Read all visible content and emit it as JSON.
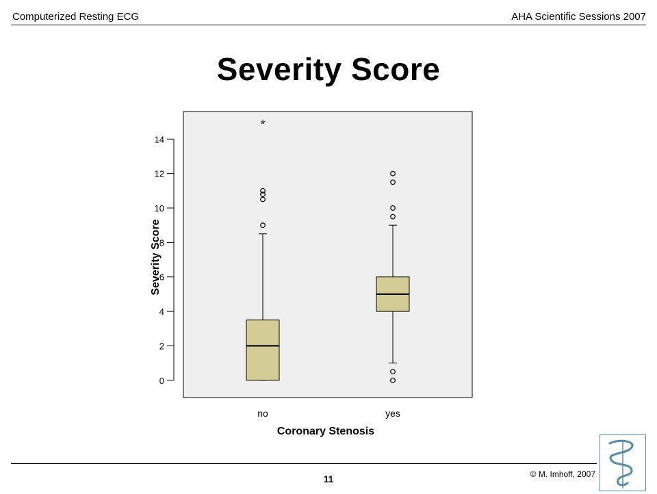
{
  "header": {
    "left_text": "Computerized Resting ECG",
    "right_text": "AHA Scientific Sessions 2007"
  },
  "slide": {
    "title": "Severity Score",
    "page_number": "11",
    "copyright": "© M. Imhoff, 2007"
  },
  "logo": {
    "icon": "caduceus-logo-icon",
    "color": "#5b8fa8"
  },
  "colors": {
    "plot_bg": "#efefef",
    "box_fill": "#d3cd95"
  },
  "chart_data": {
    "type": "boxplot",
    "title": "",
    "xlabel": "Coronary Stenosis",
    "ylabel": "Severity Score",
    "categories": [
      "no",
      "yes"
    ],
    "ylim": [
      -1,
      15.6
    ],
    "yticks": [
      0,
      2,
      4,
      6,
      8,
      10,
      12,
      14
    ],
    "boxes": [
      {
        "category": "no",
        "whisker_low": 0,
        "q1": 0,
        "median": 2,
        "q3": 3.5,
        "whisker_high": 8.5,
        "outliers": [
          9,
          10.5,
          10.8,
          11
        ],
        "extremes": [
          15
        ]
      },
      {
        "category": "yes",
        "whisker_low": 1,
        "q1": 4,
        "median": 5,
        "q3": 6,
        "whisker_high": 9,
        "outliers": [
          0,
          0.5,
          9.5,
          10,
          11.5,
          12
        ],
        "extremes": []
      }
    ],
    "grid": false,
    "legend": "none"
  }
}
